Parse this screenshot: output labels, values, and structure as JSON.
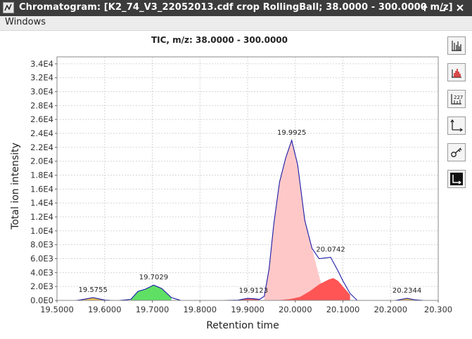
{
  "window": {
    "title": "Chromatogram: [K2_74_V3_22052013.cdf crop RollingBall; 38.0000 - 300.0000 m/z]"
  },
  "menu": {
    "items": [
      {
        "label": "Windows"
      }
    ]
  },
  "toolbar": {
    "buttons": [
      {
        "icon": "spectrum-bars-icon"
      },
      {
        "icon": "peak-highlight-icon"
      },
      {
        "icon": "annotation-label-icon"
      },
      {
        "icon": "axes-icon"
      },
      {
        "icon": "key-icon"
      },
      {
        "icon": "corner-arrow-icon"
      }
    ]
  },
  "chart_data": {
    "type": "area",
    "title": "TIC, m/z: 38.0000 - 300.0000",
    "xlabel": "Retention time",
    "ylabel": "Total ion intensity",
    "xlim": [
      19.5,
      20.3
    ],
    "ylim": [
      0,
      35000
    ],
    "x_ticks": [
      "19.5000",
      "19.6000",
      "19.7000",
      "19.8000",
      "19.9000",
      "20.0000",
      "20.1000",
      "20.2000",
      "20.300"
    ],
    "x_tick_values": [
      19.5,
      19.6,
      19.7,
      19.8,
      19.9,
      20.0,
      20.1,
      20.2,
      20.3
    ],
    "y_ticks": [
      "0.0E0",
      "2.0E3",
      "4.0E3",
      "6.0E3",
      "8.0E3",
      "1.0E4",
      "1.2E4",
      "1.4E4",
      "1.6E4",
      "1.8E4",
      "2.0E4",
      "2.2E4",
      "2.4E4",
      "2.6E4",
      "2.8E4",
      "3.0E4",
      "3.2E4",
      "3.4E4"
    ],
    "y_tick_values": [
      0,
      2000,
      4000,
      6000,
      8000,
      10000,
      12000,
      14000,
      16000,
      18000,
      20000,
      22000,
      24000,
      26000,
      28000,
      30000,
      32000,
      34000
    ],
    "grid": true,
    "line_color": "#1a1aa8",
    "tic": {
      "x": [
        19.5,
        19.54,
        19.55,
        19.5755,
        19.6,
        19.615,
        19.63,
        19.655,
        19.67,
        19.685,
        19.7029,
        19.72,
        19.74,
        19.76,
        19.8,
        19.85,
        19.88,
        19.9,
        19.9123,
        19.925,
        19.935,
        19.945,
        19.955,
        19.967,
        19.98,
        19.9925,
        20.005,
        20.02,
        20.035,
        20.05,
        20.0742,
        20.09,
        20.1,
        20.115,
        20.13,
        20.15,
        20.18,
        20.21,
        20.2344,
        20.25,
        20.27,
        20.3
      ],
      "y": [
        0,
        0,
        80,
        400,
        60,
        0,
        0,
        150,
        1300,
        1600,
        2200,
        1700,
        400,
        0,
        0,
        0,
        50,
        300,
        250,
        150,
        600,
        4500,
        11000,
        17000,
        20500,
        23000,
        19500,
        11500,
        7500,
        6000,
        6200,
        4200,
        2800,
        1000,
        0,
        0,
        0,
        0,
        300,
        100,
        0,
        0
      ]
    },
    "peaks": [
      {
        "label": "19.5755",
        "x": 19.5755,
        "color": "#f0c050",
        "x_pts": [
          19.55,
          19.5755,
          19.6
        ],
        "y_pts": [
          80,
          400,
          60
        ]
      },
      {
        "label": "19.7029",
        "x": 19.7029,
        "color": "#5fe065",
        "x_pts": [
          19.655,
          19.67,
          19.685,
          19.7029,
          19.72,
          19.74
        ],
        "y_pts": [
          150,
          1300,
          1600,
          2200,
          1700,
          400
        ]
      },
      {
        "label": "19.9123",
        "x": 19.9123,
        "color": "#f06060",
        "x_pts": [
          19.88,
          19.9,
          19.9123,
          19.925
        ],
        "y_pts": [
          50,
          300,
          250,
          150
        ]
      },
      {
        "label": "19.9925",
        "x": 19.9925,
        "color": "#ffc8c8",
        "x_pts": [
          19.935,
          19.945,
          19.955,
          19.967,
          19.98,
          19.9925,
          20.005,
          20.02,
          20.035,
          20.05,
          20.065
        ],
        "y_pts": [
          600,
          4500,
          11000,
          17000,
          20500,
          23000,
          19500,
          11500,
          7500,
          3500,
          0
        ]
      },
      {
        "label": "20.0742",
        "x": 20.0742,
        "color": "#ff5555",
        "x_pts": [
          19.96,
          19.99,
          20.01,
          20.03,
          20.05,
          20.07,
          20.08,
          20.09,
          20.1,
          20.115
        ],
        "y_pts": [
          0,
          200,
          500,
          1300,
          2300,
          3000,
          3200,
          2800,
          2000,
          800
        ]
      },
      {
        "label": "20.2344",
        "x": 20.2344,
        "color": "#f0c050",
        "x_pts": [
          20.22,
          20.2344,
          20.25
        ],
        "y_pts": [
          60,
          300,
          80
        ]
      }
    ]
  }
}
